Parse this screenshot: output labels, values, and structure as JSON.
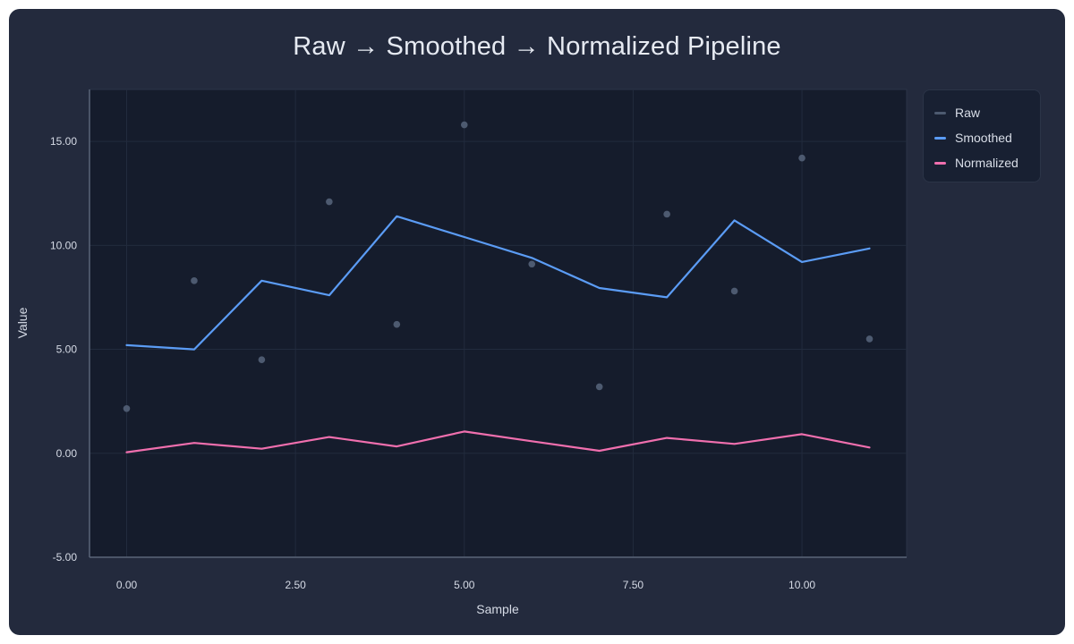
{
  "chart_data": {
    "type": "line",
    "title": "Raw → Smoothed → Normalized Pipeline",
    "xlabel": "Sample",
    "ylabel": "Value",
    "xlim": [
      -0.55,
      11.55
    ],
    "ylim": [
      -5.0,
      17.5
    ],
    "x_ticks": [
      0,
      2.5,
      5,
      7.5,
      10
    ],
    "x_tick_labels": [
      "0.00",
      "2.50",
      "5.00",
      "7.50",
      "10.00"
    ],
    "y_ticks": [
      -5,
      0,
      5,
      10,
      15
    ],
    "y_tick_labels": [
      "-5.00",
      "0.00",
      "5.00",
      "10.00",
      "15.00"
    ],
    "grid": true,
    "legend_position": "right",
    "x": [
      0,
      1,
      2,
      3,
      4,
      5,
      6,
      7,
      8,
      9,
      10,
      11
    ],
    "series": [
      {
        "name": "Raw",
        "style": "scatter",
        "color": "#4d5a70",
        "values": [
          2.15,
          8.3,
          4.5,
          12.1,
          6.2,
          15.8,
          9.1,
          3.2,
          11.5,
          7.8,
          14.2,
          5.5
        ]
      },
      {
        "name": "Smoothed",
        "style": "line",
        "color": "#5b9cf5",
        "values": [
          5.2,
          5.0,
          8.3,
          7.6,
          11.4,
          10.4,
          9.4,
          7.95,
          7.5,
          11.2,
          9.2,
          9.85
        ]
      },
      {
        "name": "Normalized",
        "style": "line",
        "color": "#f06fae",
        "values": [
          0.05,
          0.5,
          0.22,
          0.78,
          0.33,
          1.05,
          0.58,
          0.12,
          0.74,
          0.45,
          0.92,
          0.28
        ]
      }
    ]
  }
}
